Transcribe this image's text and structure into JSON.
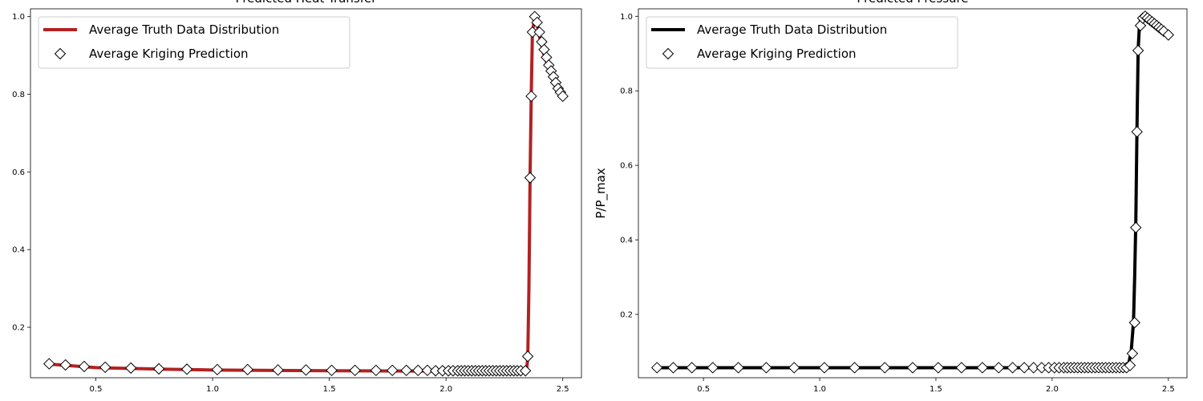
{
  "chart_data": [
    {
      "type": "line",
      "title": "Predicted Heat Transfer",
      "xlabel": "",
      "ylabel": "",
      "xlim": [
        0.22,
        2.58
      ],
      "ylim": [
        0.07,
        1.02
      ],
      "xticks": [
        0.5,
        1.0,
        1.5,
        2.0,
        2.5
      ],
      "yticks": [
        0.2,
        0.4,
        0.6,
        0.8,
        1.0
      ],
      "grid": false,
      "legend_position": "top-left",
      "line_color": "#b22222",
      "series": [
        {
          "name": "Average Truth Data Distribution",
          "kind": "line",
          "x": [
            0.3,
            0.5,
            0.8,
            1.0,
            1.5,
            2.0,
            2.3,
            2.345,
            2.35,
            2.355,
            2.36,
            2.365,
            2.37,
            2.38,
            2.39,
            2.4,
            2.42,
            2.45,
            2.48,
            2.5
          ],
          "y": [
            0.105,
            0.096,
            0.092,
            0.09,
            0.088,
            0.087,
            0.087,
            0.09,
            0.12,
            0.3,
            0.59,
            0.8,
            0.96,
            1.0,
            0.98,
            0.95,
            0.9,
            0.85,
            0.81,
            0.795
          ]
        },
        {
          "name": "Average Kriging Prediction",
          "kind": "scatter",
          "marker": "diamond",
          "x": [
            0.3,
            0.37,
            0.45,
            0.54,
            0.65,
            0.77,
            0.89,
            1.02,
            1.15,
            1.28,
            1.4,
            1.51,
            1.61,
            1.7,
            1.77,
            1.83,
            1.88,
            1.92,
            1.955,
            1.985,
            2.01,
            2.03,
            2.05,
            2.065,
            2.08,
            2.095,
            2.11,
            2.125,
            2.14,
            2.155,
            2.17,
            2.185,
            2.2,
            2.215,
            2.23,
            2.245,
            2.26,
            2.275,
            2.29,
            2.305,
            2.32,
            2.34,
            2.35,
            2.36,
            2.365,
            2.37,
            2.38,
            2.39,
            2.4,
            2.41,
            2.42,
            2.43,
            2.44,
            2.45,
            2.46,
            2.47,
            2.48,
            2.49,
            2.5
          ],
          "y": [
            0.106,
            0.103,
            0.099,
            0.097,
            0.095,
            0.093,
            0.092,
            0.091,
            0.091,
            0.09,
            0.09,
            0.089,
            0.089,
            0.089,
            0.089,
            0.089,
            0.089,
            0.089,
            0.088,
            0.088,
            0.088,
            0.088,
            0.088,
            0.088,
            0.088,
            0.088,
            0.088,
            0.088,
            0.088,
            0.088,
            0.088,
            0.088,
            0.088,
            0.088,
            0.088,
            0.088,
            0.088,
            0.088,
            0.088,
            0.088,
            0.088,
            0.088,
            0.125,
            0.585,
            0.795,
            0.96,
            1.0,
            0.985,
            0.96,
            0.935,
            0.915,
            0.895,
            0.875,
            0.86,
            0.845,
            0.83,
            0.815,
            0.805,
            0.795
          ]
        }
      ]
    },
    {
      "type": "line",
      "title": "Predicted Pressure",
      "xlabel": "",
      "ylabel": "P/P_max",
      "xlim": [
        0.22,
        2.58
      ],
      "ylim": [
        0.03,
        1.02
      ],
      "xticks": [
        0.5,
        1.0,
        1.5,
        2.0,
        2.5
      ],
      "yticks": [
        0.2,
        0.4,
        0.6,
        0.8,
        1.0
      ],
      "grid": false,
      "legend_position": "top-left",
      "line_color": "#000000",
      "series": [
        {
          "name": "Average Truth Data Distribution",
          "kind": "line",
          "x": [
            0.3,
            1.0,
            2.0,
            2.3,
            2.33,
            2.34,
            2.35,
            2.355,
            2.36,
            2.365,
            2.37,
            2.375,
            2.38,
            2.39,
            2.4,
            2.42,
            2.45,
            2.48,
            2.5
          ],
          "y": [
            0.057,
            0.057,
            0.057,
            0.058,
            0.07,
            0.1,
            0.18,
            0.3,
            0.45,
            0.7,
            0.91,
            0.97,
            0.99,
            1.0,
            0.995,
            0.985,
            0.975,
            0.96,
            0.95
          ]
        },
        {
          "name": "Average Kriging Prediction",
          "kind": "scatter",
          "marker": "diamond",
          "x": [
            0.3,
            0.37,
            0.45,
            0.54,
            0.65,
            0.77,
            0.89,
            1.02,
            1.15,
            1.28,
            1.4,
            1.51,
            1.61,
            1.7,
            1.77,
            1.83,
            1.88,
            1.92,
            1.955,
            1.985,
            2.01,
            2.03,
            2.05,
            2.065,
            2.08,
            2.095,
            2.11,
            2.125,
            2.14,
            2.155,
            2.17,
            2.185,
            2.2,
            2.215,
            2.23,
            2.245,
            2.26,
            2.275,
            2.29,
            2.305,
            2.32,
            2.335,
            2.345,
            2.355,
            2.36,
            2.365,
            2.37,
            2.38,
            2.39,
            2.4,
            2.41,
            2.42,
            2.43,
            2.44,
            2.45,
            2.46,
            2.47,
            2.48,
            2.5
          ],
          "y": [
            0.057,
            0.057,
            0.057,
            0.057,
            0.057,
            0.057,
            0.057,
            0.057,
            0.057,
            0.057,
            0.057,
            0.057,
            0.057,
            0.057,
            0.057,
            0.057,
            0.057,
            0.057,
            0.057,
            0.057,
            0.057,
            0.057,
            0.057,
            0.057,
            0.057,
            0.057,
            0.057,
            0.057,
            0.057,
            0.057,
            0.057,
            0.057,
            0.057,
            0.057,
            0.057,
            0.057,
            0.057,
            0.057,
            0.057,
            0.057,
            0.057,
            0.063,
            0.095,
            0.178,
            0.433,
            0.69,
            0.908,
            0.975,
            0.995,
            1.0,
            0.995,
            0.99,
            0.985,
            0.98,
            0.975,
            0.97,
            0.965,
            0.96,
            0.95
          ]
        }
      ]
    }
  ]
}
